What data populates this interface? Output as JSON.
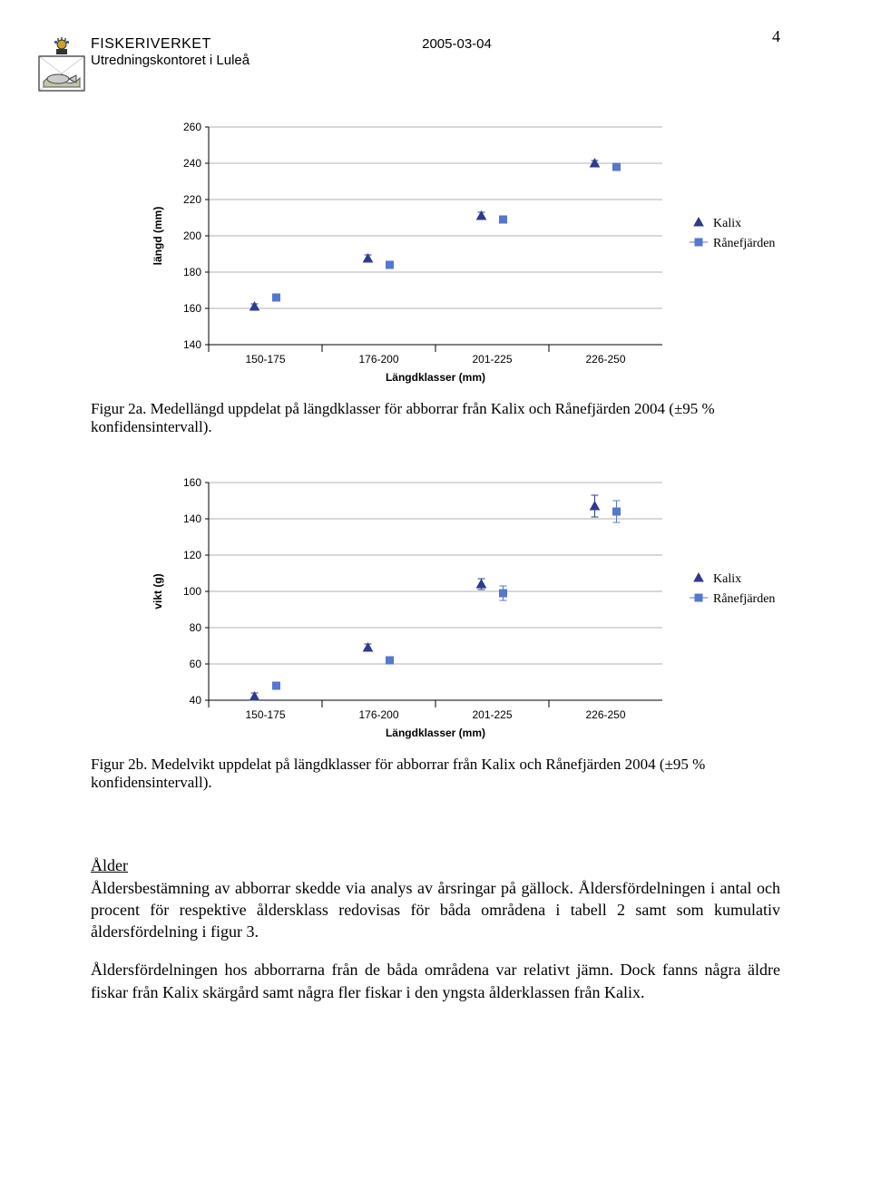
{
  "page_number": "4",
  "header": {
    "org": "FISKERIVERKET",
    "dept": "Utredningskontoret i Luleå",
    "date": "2005-03-04"
  },
  "chart_a": {
    "type": "scatter",
    "y_label": "längd (mm)",
    "x_label": "Längdklasser (mm)",
    "categories": [
      "150-175",
      "176-200",
      "201-225",
      "226-250"
    ],
    "y_ticks": [
      140,
      160,
      180,
      200,
      220,
      240,
      260
    ],
    "ylim": [
      140,
      260
    ],
    "series": [
      {
        "name": "Kalix",
        "marker": "triangle",
        "color": "#2e3b8f",
        "fill": "#2e3b8f",
        "values": [
          161,
          187.5,
          211,
          240
        ],
        "err": [
          1.5,
          2,
          2,
          1.5
        ]
      },
      {
        "name": "Rånefjärden",
        "marker": "square",
        "color": "#5577cc",
        "fill": "#5577cc",
        "values": [
          166,
          184,
          209,
          238
        ],
        "err": [
          1.5,
          2,
          2,
          1.5
        ]
      }
    ],
    "grid_color": "#999999",
    "axis_color": "#000000",
    "background_color": "#ffffff"
  },
  "chart_b": {
    "type": "scatter",
    "y_label": "vikt (g)",
    "x_label": "Längdklasser (mm)",
    "categories": [
      "150-175",
      "176-200",
      "201-225",
      "226-250"
    ],
    "y_ticks": [
      40,
      60,
      80,
      100,
      120,
      140,
      160
    ],
    "ylim": [
      40,
      160
    ],
    "series": [
      {
        "name": "Kalix",
        "marker": "triangle",
        "color": "#2e3b8f",
        "fill": "#2e3b8f",
        "values": [
          42,
          69,
          104,
          147
        ],
        "err": [
          2,
          2,
          3,
          6
        ]
      },
      {
        "name": "Rånefjärden",
        "marker": "square",
        "color": "#5577cc",
        "fill": "#5577cc",
        "values": [
          48,
          62,
          99,
          144
        ],
        "err": [
          2,
          2,
          4,
          6
        ]
      }
    ],
    "grid_color": "#999999",
    "axis_color": "#000000",
    "background_color": "#ffffff"
  },
  "caption_a": "Figur 2a. Medellängd uppdelat på längdklasser för abborrar från Kalix och Rånefjärden 2004 (±95 % konfidensintervall).",
  "caption_b": "Figur 2b. Medelvikt uppdelat på längdklasser för abborrar från Kalix och Rånefjärden 2004 (±95 % konfidensintervall).",
  "section": {
    "heading": "Ålder",
    "p1": "Åldersbestämning av abborrar skedde via analys av årsringar på gällock. Åldersfördelningen i antal och procent för respektive åldersklass redovisas för båda områdena i tabell 2 samt som kumulativ åldersfördelning i figur 3.",
    "p2": "Åldersfördelningen hos abborrarna från de båda områdena var relativt jämn. Dock fanns några äldre fiskar från Kalix skärgård samt några fler fiskar i den yngsta ålderklassen från Kalix."
  },
  "legend_labels": {
    "kalix": "Kalix",
    "rane": "Rånefjärden"
  }
}
